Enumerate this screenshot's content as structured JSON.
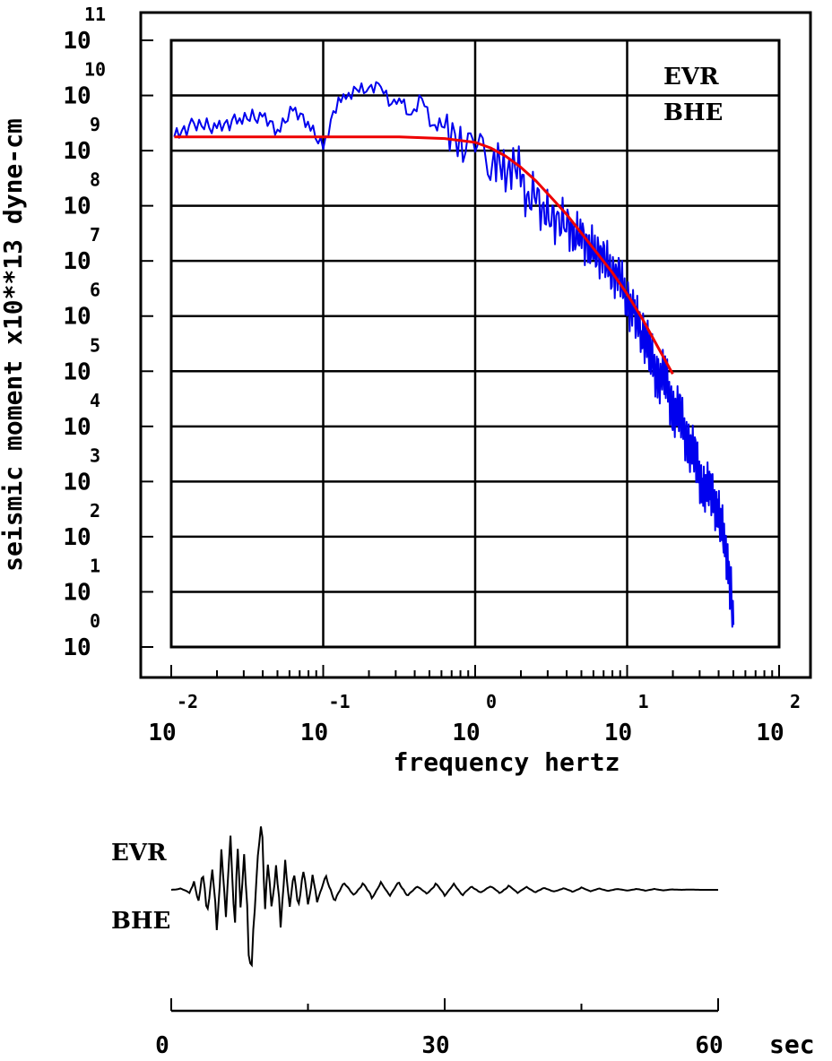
{
  "chart_data": [
    {
      "type": "line",
      "xscale": "log",
      "yscale": "log",
      "xlabel": "frequency  hertz",
      "ylabel": "seismic moment x10**13 dyne-cm",
      "xlim_exp": [
        -2,
        2
      ],
      "ylim_exp": [
        0,
        11
      ],
      "x_tick_labels": [
        {
          "base": "10",
          "exp": "-2"
        },
        {
          "base": "10",
          "exp": "-1"
        },
        {
          "base": "10",
          "exp": "0"
        },
        {
          "base": "10",
          "exp": "1"
        },
        {
          "base": "10",
          "exp": "2"
        }
      ],
      "y_tick_labels": [
        {
          "base": "10",
          "exp": "0"
        },
        {
          "base": "10",
          "exp": "1"
        },
        {
          "base": "10",
          "exp": "2"
        },
        {
          "base": "10",
          "exp": "3"
        },
        {
          "base": "10",
          "exp": "4"
        },
        {
          "base": "10",
          "exp": "5"
        },
        {
          "base": "10",
          "exp": "6"
        },
        {
          "base": "10",
          "exp": "7"
        },
        {
          "base": "10",
          "exp": "8"
        },
        {
          "base": "10",
          "exp": "9"
        },
        {
          "base": "10",
          "exp": "10"
        },
        {
          "base": "10",
          "exp": "11"
        }
      ],
      "grid": true,
      "annotations": [
        "EVR",
        "BHE"
      ],
      "colors": {
        "spectrum": "#0000ee",
        "model": "#ee0000"
      },
      "series": [
        {
          "color": "#0000ee",
          "log10_x": [
            -1.98,
            -1.85,
            -1.7,
            -1.55,
            -1.4,
            -1.3,
            -1.2,
            -1.1,
            -1.0,
            -0.9,
            -0.85,
            -0.78,
            -0.7,
            -0.62,
            -0.55,
            -0.5,
            -0.42,
            -0.35,
            -0.28,
            -0.22,
            -0.15,
            -0.08,
            -0.03,
            0.0,
            0.05,
            0.1,
            0.15,
            0.2,
            0.25,
            0.3,
            0.35,
            0.4,
            0.45,
            0.5,
            0.55,
            0.6,
            0.65,
            0.7,
            0.75,
            0.8,
            0.85,
            0.9,
            0.95,
            1.0,
            1.05,
            1.1,
            1.15,
            1.2,
            1.25,
            1.3,
            1.35,
            1.4,
            1.45,
            1.5,
            1.55,
            1.6,
            1.65,
            1.68,
            1.7
          ],
          "log10_y": [
            9.25,
            9.5,
            9.4,
            9.6,
            9.6,
            9.4,
            9.7,
            9.55,
            9.0,
            10.0,
            9.9,
            10.15,
            10.1,
            10.2,
            9.8,
            10.0,
            9.6,
            10.0,
            9.4,
            9.5,
            9.3,
            9.0,
            9.1,
            9.2,
            9.0,
            8.7,
            8.9,
            8.5,
            8.8,
            8.6,
            8.0,
            8.3,
            7.8,
            7.9,
            7.6,
            7.8,
            7.4,
            7.5,
            7.2,
            7.2,
            7.0,
            6.8,
            6.7,
            6.3,
            6.0,
            5.7,
            5.4,
            4.8,
            5.0,
            4.2,
            4.3,
            3.6,
            3.5,
            2.8,
            2.9,
            2.4,
            1.8,
            1.1,
            0.4
          ]
        },
        {
          "color": "#ee0000",
          "log10_x": [
            -1.98,
            -1.5,
            -1.0,
            -0.5,
            -0.2,
            0.0,
            0.1,
            0.2,
            0.3,
            0.4,
            0.5,
            0.6,
            0.7,
            0.8,
            0.9,
            1.0,
            1.1,
            1.2,
            1.3
          ],
          "log10_y": [
            9.25,
            9.25,
            9.25,
            9.25,
            9.22,
            9.15,
            9.05,
            8.9,
            8.7,
            8.45,
            8.15,
            7.85,
            7.5,
            7.15,
            6.8,
            6.4,
            5.95,
            5.45,
            4.95
          ]
        }
      ]
    },
    {
      "type": "line",
      "xlabel": "sec",
      "x_tick_labels": [
        "0",
        "30",
        "60"
      ],
      "xlim": [
        0,
        60
      ],
      "annotations": [
        "EVR",
        "BHE"
      ],
      "series": [
        {
          "color": "#000000",
          "x": [
            0,
            1,
            2,
            2.5,
            3,
            3.5,
            4,
            4.5,
            5,
            5.5,
            6,
            6.5,
            7,
            7.3,
            7.6,
            8,
            8.5,
            9,
            9.5,
            10,
            10.3,
            10.6,
            11,
            11.5,
            12,
            12.5,
            13,
            13.5,
            14,
            14.5,
            15,
            15.5,
            16,
            17,
            18,
            19,
            20,
            21,
            22,
            23,
            24,
            25,
            26,
            27,
            28,
            29,
            30,
            31,
            32,
            33,
            34,
            35,
            36,
            37,
            38,
            39,
            40,
            41,
            42,
            43,
            44,
            45,
            46,
            47,
            48,
            49,
            50,
            51,
            52,
            53,
            54,
            55,
            56,
            57,
            58,
            59,
            60
          ],
          "y": [
            0,
            0.05,
            -0.1,
            0.3,
            -0.5,
            0.8,
            -1.2,
            1.0,
            -1.5,
            1.3,
            -0.9,
            2.2,
            -1.8,
            2.7,
            -1.0,
            1.5,
            -2.2,
            -2.6,
            1.8,
            2.5,
            -1.2,
            1.6,
            -0.8,
            0.9,
            -1.2,
            1.0,
            -0.7,
            0.8,
            -0.9,
            1.0,
            -0.6,
            0.5,
            -0.4,
            0.5,
            -0.5,
            0.4,
            -0.3,
            0.3,
            -0.3,
            0.25,
            -0.2,
            0.3,
            -0.3,
            0.2,
            -0.2,
            0.25,
            -0.2,
            0.2,
            -0.2,
            0.15,
            -0.15,
            0.2,
            -0.15,
            0.15,
            -0.1,
            0.1,
            -0.1,
            0.1,
            -0.1,
            0.08,
            -0.08,
            0.08,
            -0.05,
            0.05,
            -0.05,
            0.05,
            -0.04,
            0.04,
            -0.03,
            0.03,
            -0.02,
            0.02,
            0.0,
            0.01,
            0.0,
            0.0,
            0.0
          ]
        }
      ]
    }
  ]
}
